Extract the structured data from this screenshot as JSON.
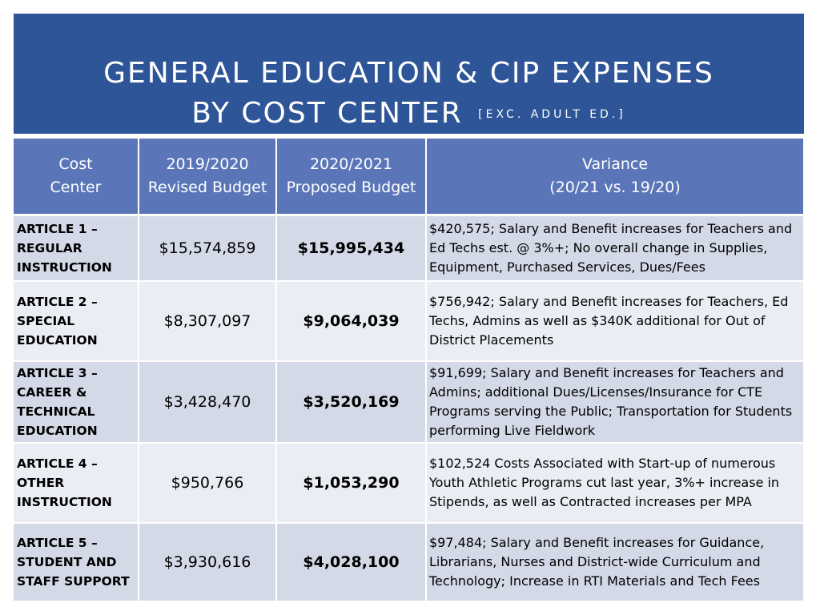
{
  "title": {
    "line1": "GENERAL EDUCATION & CIP EXPENSES",
    "line2": "BY COST CENTER",
    "sub": "[EXC. ADULT ED.]"
  },
  "table": {
    "headers": {
      "center_line1": "Cost",
      "center_line2": "Center",
      "revised_line1": "2019/2020",
      "revised_line2": "Revised Budget",
      "proposed_line1": "2020/2021",
      "proposed_line2": "Proposed Budget",
      "variance_line1": "Variance",
      "variance_line2": "(20/21 vs. 19/20)"
    },
    "rows": [
      {
        "center": [
          "ARTICLE 1 –",
          "REGULAR",
          "INSTRUCTION"
        ],
        "revised": "$15,574,859",
        "proposed": "$15,995,434",
        "variance": "$420,575; Salary and Benefit increases for Teachers and Ed Techs est. @ 3%+; No overall change in Supplies, Equipment, Purchased Services, Dues/Fees"
      },
      {
        "center": [
          "ARTICLE 2 –",
          "SPECIAL",
          "EDUCATION"
        ],
        "revised": "$8,307,097",
        "proposed": "$9,064,039",
        "variance": "$756,942; Salary and Benefit increases for Teachers, Ed Techs, Admins as well as $340K additional for Out of District Placements"
      },
      {
        "center": [
          "ARTICLE 3 –",
          "CAREER &",
          "TECHNICAL",
          "EDUCATION"
        ],
        "revised": "$3,428,470",
        "proposed": "$3,520,169",
        "variance": "$91,699; Salary and Benefit increases for Teachers and Admins; additional Dues/Licenses/Insurance for CTE Programs serving the Public; Transportation for Students performing Live Fieldwork"
      },
      {
        "center": [
          "ARTICLE 4 –",
          "OTHER",
          "INSTRUCTION"
        ],
        "revised": "$950,766",
        "proposed": "$1,053,290",
        "variance": "$102,524 Costs Associated with Start-up of numerous Youth Athletic Programs cut last year, 3%+ increase in Stipends,  as well as Contracted increases per MPA"
      },
      {
        "center": [
          "ARTICLE 5 –",
          "STUDENT AND",
          "STAFF SUPPORT"
        ],
        "revised": "$3,930,616",
        "proposed": "$4,028,100",
        "variance": "$97,484; Salary and Benefit increases for Guidance, Librarians, Nurses and District-wide Curriculum and Technology; Increase in RTI Materials and Tech Fees"
      }
    ]
  }
}
